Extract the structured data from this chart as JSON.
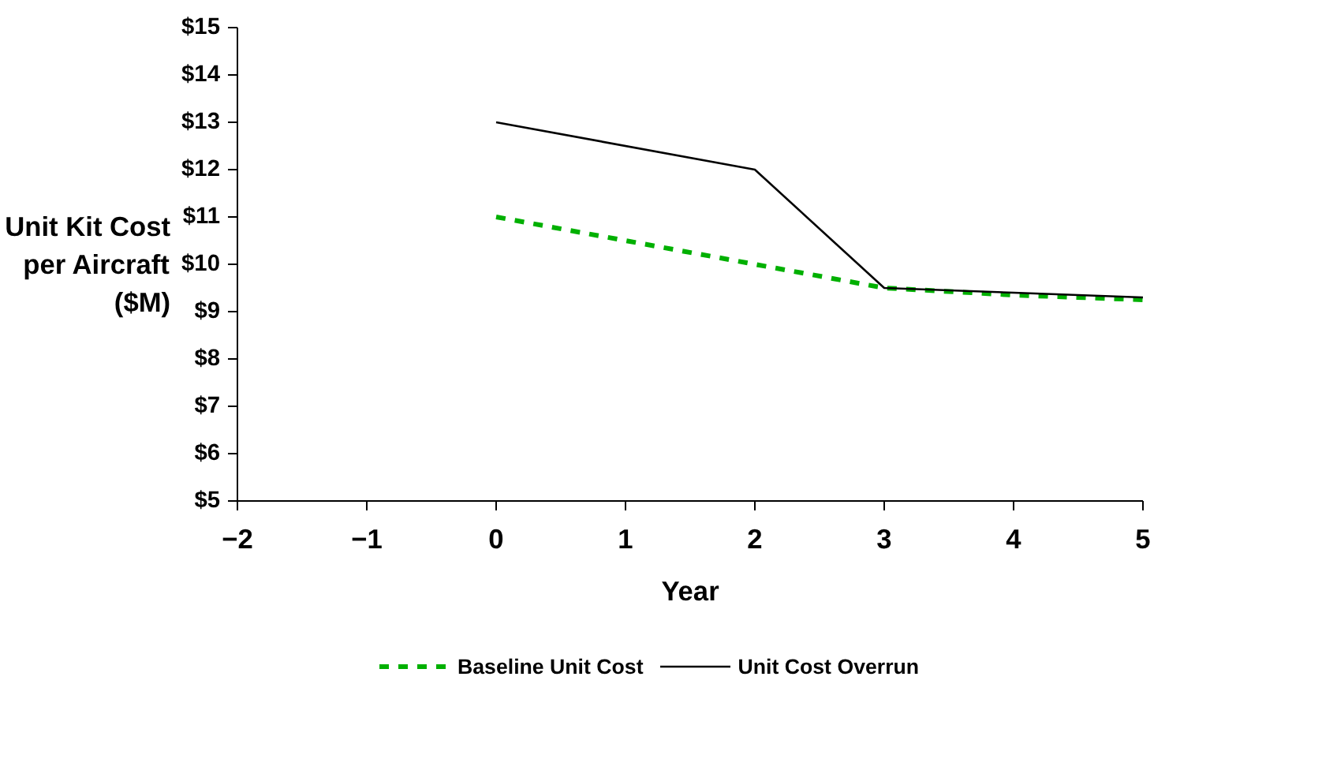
{
  "chart_data": {
    "type": "line",
    "xlabel": "Year",
    "ylabel": "Unit Kit Cost\nper Aircraft\n($M)",
    "xlim": [
      -2,
      5
    ],
    "xticks": [
      -2,
      -1,
      0,
      1,
      2,
      3,
      4,
      5
    ],
    "ylim": [
      5,
      15
    ],
    "yticks": [
      {
        "value": 5,
        "label": "$5"
      },
      {
        "value": 6,
        "label": "$6"
      },
      {
        "value": 7,
        "label": "$7"
      },
      {
        "value": 8,
        "label": "$8"
      },
      {
        "value": 9,
        "label": "$9"
      },
      {
        "value": 10,
        "label": "$10"
      },
      {
        "value": 11,
        "label": "$11"
      },
      {
        "value": 12,
        "label": "$12"
      },
      {
        "value": 13,
        "label": "$13"
      },
      {
        "value": 14,
        "label": "$14"
      },
      {
        "value": 15,
        "label": "$15"
      }
    ],
    "grid": false,
    "legend": "bottom",
    "marker": "none",
    "series": [
      {
        "name": "Baseline Unit Cost",
        "color": "#00b000",
        "line_style": "dashed",
        "x": [
          0,
          1,
          2,
          3,
          4,
          5
        ],
        "values": [
          11,
          10.5,
          10,
          9.5,
          9.35,
          9.25
        ]
      },
      {
        "name": "Unit Cost Overrun",
        "color": "#000000",
        "line_style": "solid",
        "x": [
          0,
          2,
          3,
          4,
          5
        ],
        "values": [
          13,
          12,
          9.5,
          9.4,
          9.3
        ]
      }
    ]
  }
}
